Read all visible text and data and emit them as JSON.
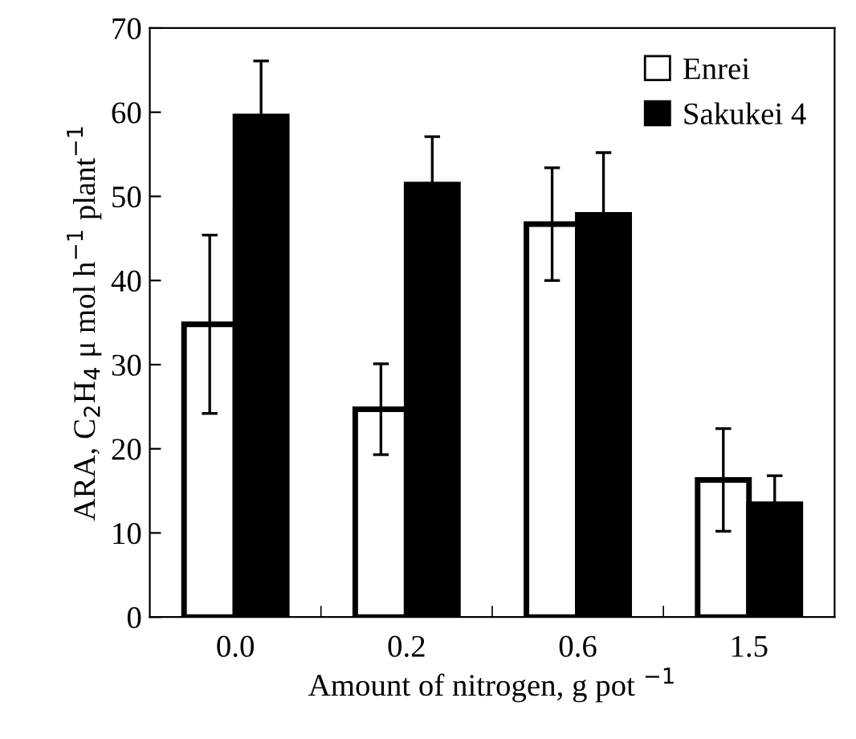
{
  "chart_data": {
    "type": "bar",
    "xlabel": "Amount of nitrogen, g pot $^{−1}$",
    "ylabel": "ARA, C$_{2}$H$_{4}$ μ mol h$^{−1}$ plant$^{−1}$",
    "categories": [
      "0.0",
      "0.2",
      "0.6",
      "1.5"
    ],
    "series": [
      {
        "name": "Enrei",
        "color": "#ffffff",
        "values": [
          34.8,
          24.7,
          46.7,
          16.3
        ],
        "errors": [
          10.6,
          5.4,
          6.7,
          6.1
        ]
      },
      {
        "name": "Sakukei 4",
        "color": "#000000",
        "values": [
          59.5,
          51.4,
          47.8,
          13.4
        ],
        "errors": [
          6.6,
          5.7,
          7.4,
          3.4
        ]
      }
    ],
    "ylim": [
      0,
      70
    ],
    "yticks": [
      0,
      10,
      20,
      30,
      40,
      50,
      60,
      70
    ],
    "legend": "top right",
    "grid": false
  }
}
